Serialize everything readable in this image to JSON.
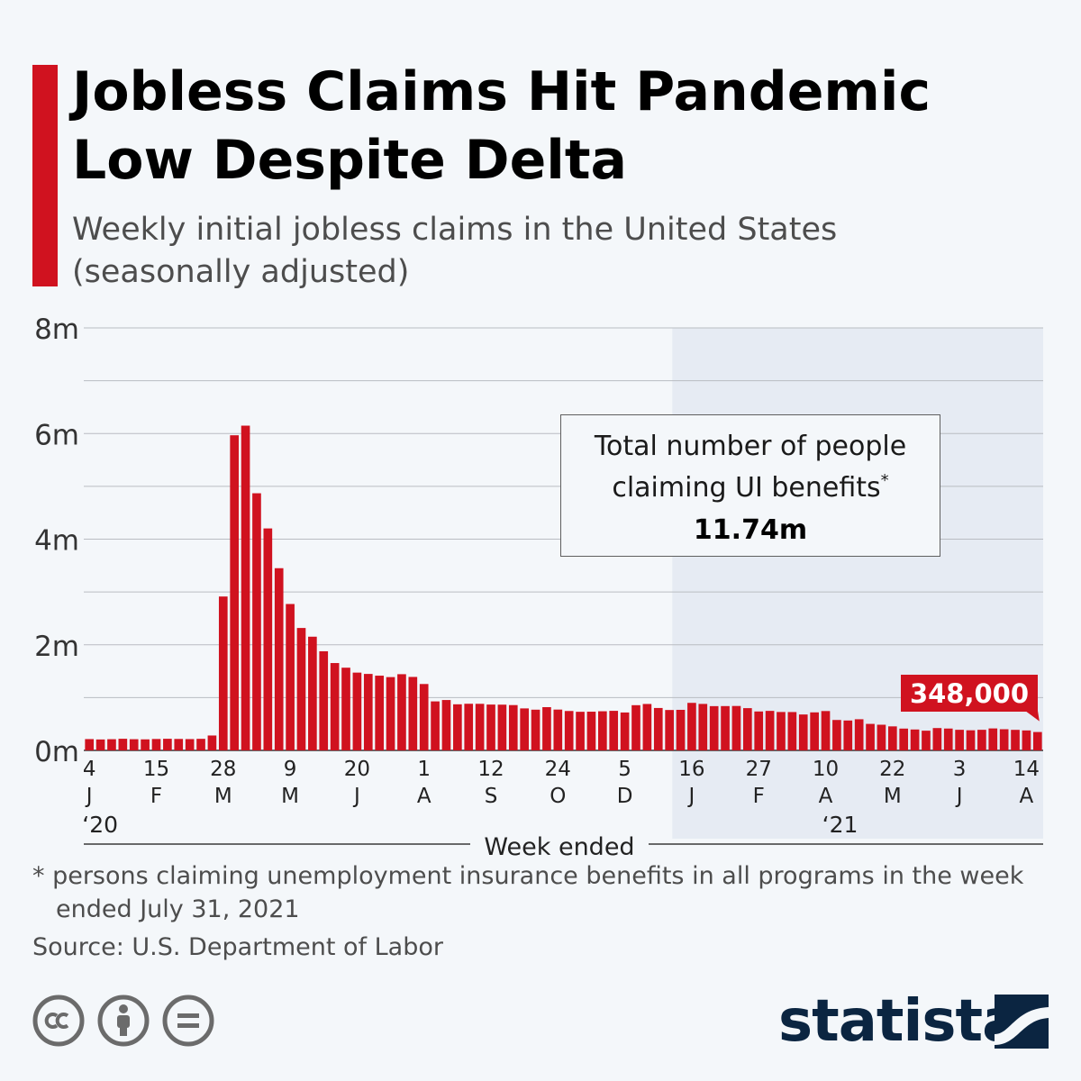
{
  "header": {
    "title": "Jobless Claims Hit Pandemic Low Despite Delta",
    "subtitle": "Weekly initial jobless claims in the United States (seasonally adjusted)"
  },
  "colors": {
    "accent": "#d0121f",
    "bar": "#d0121f",
    "highlight_region": "#e6ebf3",
    "brand": "#0b2541",
    "background": "#f4f7fa"
  },
  "callout": {
    "line1": "Total number of people",
    "line2": "claiming UI benefits",
    "marker": "*",
    "value": "11.74m"
  },
  "footnote": {
    "line1": "* persons claiming unemployment insurance benefits in all programs in the week",
    "line2": "ended July 31, 2021"
  },
  "source": "Source: U.S. Department of Labor",
  "license_icons": [
    "cc-icon",
    "attribution-icon",
    "no-derivatives-icon"
  ],
  "brand": {
    "name": "statista",
    "icon": "statista-logo-icon"
  },
  "chart_data": {
    "type": "bar",
    "title": "Jobless Claims Hit Pandemic Low Despite Delta",
    "xlabel": "Week ended",
    "ylabel": "",
    "ylim": [
      0,
      8000000
    ],
    "y_ticks": [
      {
        "value": 0,
        "label": "0m"
      },
      {
        "value": 2000000,
        "label": "2m"
      },
      {
        "value": 4000000,
        "label": "4m"
      },
      {
        "value": 6000000,
        "label": "6m"
      },
      {
        "value": 8000000,
        "label": "8m"
      }
    ],
    "x_ticks": [
      {
        "index": 0,
        "day": "4",
        "month": "J"
      },
      {
        "index": 6,
        "day": "15",
        "month": "F"
      },
      {
        "index": 12,
        "day": "28",
        "month": "M"
      },
      {
        "index": 18,
        "day": "9",
        "month": "M"
      },
      {
        "index": 24,
        "day": "20",
        "month": "J"
      },
      {
        "index": 30,
        "day": "1",
        "month": "A"
      },
      {
        "index": 36,
        "day": "12",
        "month": "S"
      },
      {
        "index": 42,
        "day": "24",
        "month": "O"
      },
      {
        "index": 48,
        "day": "5",
        "month": "D"
      },
      {
        "index": 54,
        "day": "16",
        "month": "J"
      },
      {
        "index": 60,
        "day": "27",
        "month": "F"
      },
      {
        "index": 66,
        "day": "10",
        "month": "A"
      },
      {
        "index": 72,
        "day": "22",
        "month": "M"
      },
      {
        "index": 78,
        "day": "3",
        "month": "J"
      },
      {
        "index": 84,
        "day": "14",
        "month": "A"
      }
    ],
    "year_labels": [
      {
        "index": 0,
        "label": "‘20"
      },
      {
        "index": 66,
        "label": "‘21"
      }
    ],
    "highlight_start_index": 53,
    "last_value_label": "348,000",
    "series": [
      {
        "name": "Weekly initial jobless claims",
        "values": [
          214000,
          207000,
          212000,
          220000,
          212000,
          209000,
          216000,
          220000,
          217000,
          214000,
          219000,
          282000,
          2914000,
          5967000,
          6149000,
          4869000,
          4203000,
          3450000,
          2772000,
          2318000,
          2153000,
          1877000,
          1654000,
          1566000,
          1473000,
          1448000,
          1415000,
          1388000,
          1443000,
          1391000,
          1257000,
          928000,
          954000,
          873000,
          883000,
          882000,
          868000,
          866000,
          858000,
          795000,
          771000,
          819000,
          773000,
          746000,
          731000,
          733000,
          741000,
          749000,
          718000,
          856000,
          879000,
          803000,
          765000,
          768000,
          900000,
          880000,
          838000,
          839000,
          841000,
          800000,
          737000,
          748000,
          727000,
          726000,
          680000,
          720000,
          745000,
          576000,
          566000,
          590000,
          502000,
          486000,
          455000,
          413000,
          396000,
          373000,
          423000,
          414000,
          390000,
          381000,
          390000,
          416000,
          401000,
          389000,
          378000,
          348000
        ]
      }
    ]
  }
}
